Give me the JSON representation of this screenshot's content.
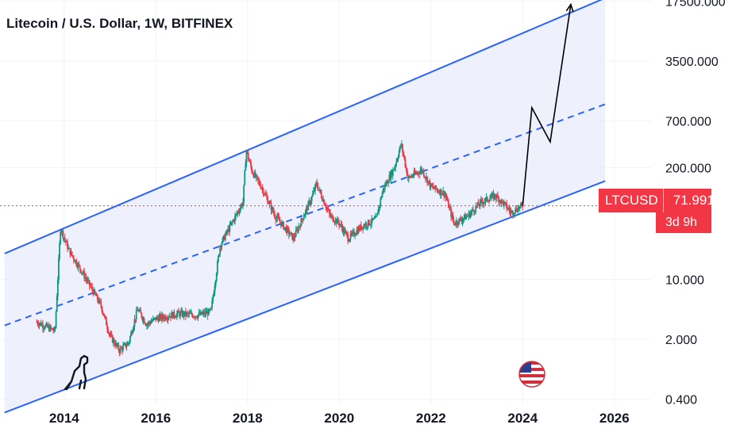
{
  "header": {
    "title": "Litecoin / U.S. Dollar, 1W, BITFINEX"
  },
  "price_badge": {
    "symbol": "LTCUSD",
    "price": "71.991",
    "countdown": "3d 9h",
    "color": "#f23645"
  },
  "icons": {
    "watermark": "dinosaur-logo-icon",
    "flag": "us-flag-icon"
  },
  "colors": {
    "channel": "#2962ff",
    "channel_fill": "#e8ecfb",
    "up": "#089981",
    "down": "#f23645",
    "projection": "#000000"
  },
  "chart_data": {
    "type": "candlestick",
    "title": "Litecoin / U.S. Dollar, 1W, BITFINEX",
    "x_axis": {
      "ticks": [
        "2014",
        "2016",
        "2018",
        "2020",
        "2022",
        "2024",
        "2026"
      ],
      "range": [
        2012.6,
        2026.8
      ]
    },
    "y_axis": {
      "scale": "log",
      "ticks": [
        "17500.000",
        "3500.000",
        "700.000",
        "200.000",
        "10.000",
        "2.000",
        "0.400"
      ],
      "tick_values": [
        17500,
        3500,
        700,
        200,
        10,
        2,
        0.4
      ],
      "range": [
        0.35,
        18000
      ],
      "position": "right"
    },
    "current_price": 71.991,
    "price_path": [
      [
        2013.4,
        3.2
      ],
      [
        2013.8,
        2.5
      ],
      [
        2013.92,
        40
      ],
      [
        2014.1,
        22
      ],
      [
        2014.4,
        12
      ],
      [
        2014.8,
        5
      ],
      [
        2015.0,
        2.2
      ],
      [
        2015.2,
        1.5
      ],
      [
        2015.4,
        1.8
      ],
      [
        2015.6,
        4.5
      ],
      [
        2015.8,
        3.0
      ],
      [
        2016.0,
        3.5
      ],
      [
        2016.5,
        4.0
      ],
      [
        2016.9,
        3.8
      ],
      [
        2017.2,
        4.2
      ],
      [
        2017.4,
        25
      ],
      [
        2017.7,
        50
      ],
      [
        2017.9,
        80
      ],
      [
        2017.97,
        320
      ],
      [
        2018.1,
        180
      ],
      [
        2018.3,
        120
      ],
      [
        2018.6,
        55
      ],
      [
        2018.9,
        35
      ],
      [
        2019.0,
        30
      ],
      [
        2019.4,
        90
      ],
      [
        2019.5,
        130
      ],
      [
        2019.8,
        55
      ],
      [
        2020.0,
        45
      ],
      [
        2020.2,
        30
      ],
      [
        2020.5,
        42
      ],
      [
        2020.8,
        50
      ],
      [
        2020.95,
        110
      ],
      [
        2021.2,
        200
      ],
      [
        2021.35,
        380
      ],
      [
        2021.5,
        150
      ],
      [
        2021.8,
        190
      ],
      [
        2022.0,
        120
      ],
      [
        2022.3,
        100
      ],
      [
        2022.5,
        45
      ],
      [
        2022.8,
        55
      ],
      [
        2023.1,
        80
      ],
      [
        2023.4,
        95
      ],
      [
        2023.6,
        75
      ],
      [
        2023.75,
        60
      ],
      [
        2023.9,
        68
      ],
      [
        2024.0,
        72
      ]
    ],
    "channel": {
      "upper": [
        [
          2012.7,
          20
        ],
        [
          2025.8,
          19000
        ]
      ],
      "middle": [
        [
          2012.7,
          2.9
        ],
        [
          2025.8,
          1100
        ]
      ],
      "lower": [
        [
          2012.7,
          0.28
        ],
        [
          2025.8,
          140
        ]
      ]
    },
    "projection": [
      [
        2024.0,
        72
      ],
      [
        2024.2,
        1000
      ],
      [
        2024.6,
        400
      ],
      [
        2025.05,
        16000
      ]
    ],
    "grid": true
  }
}
